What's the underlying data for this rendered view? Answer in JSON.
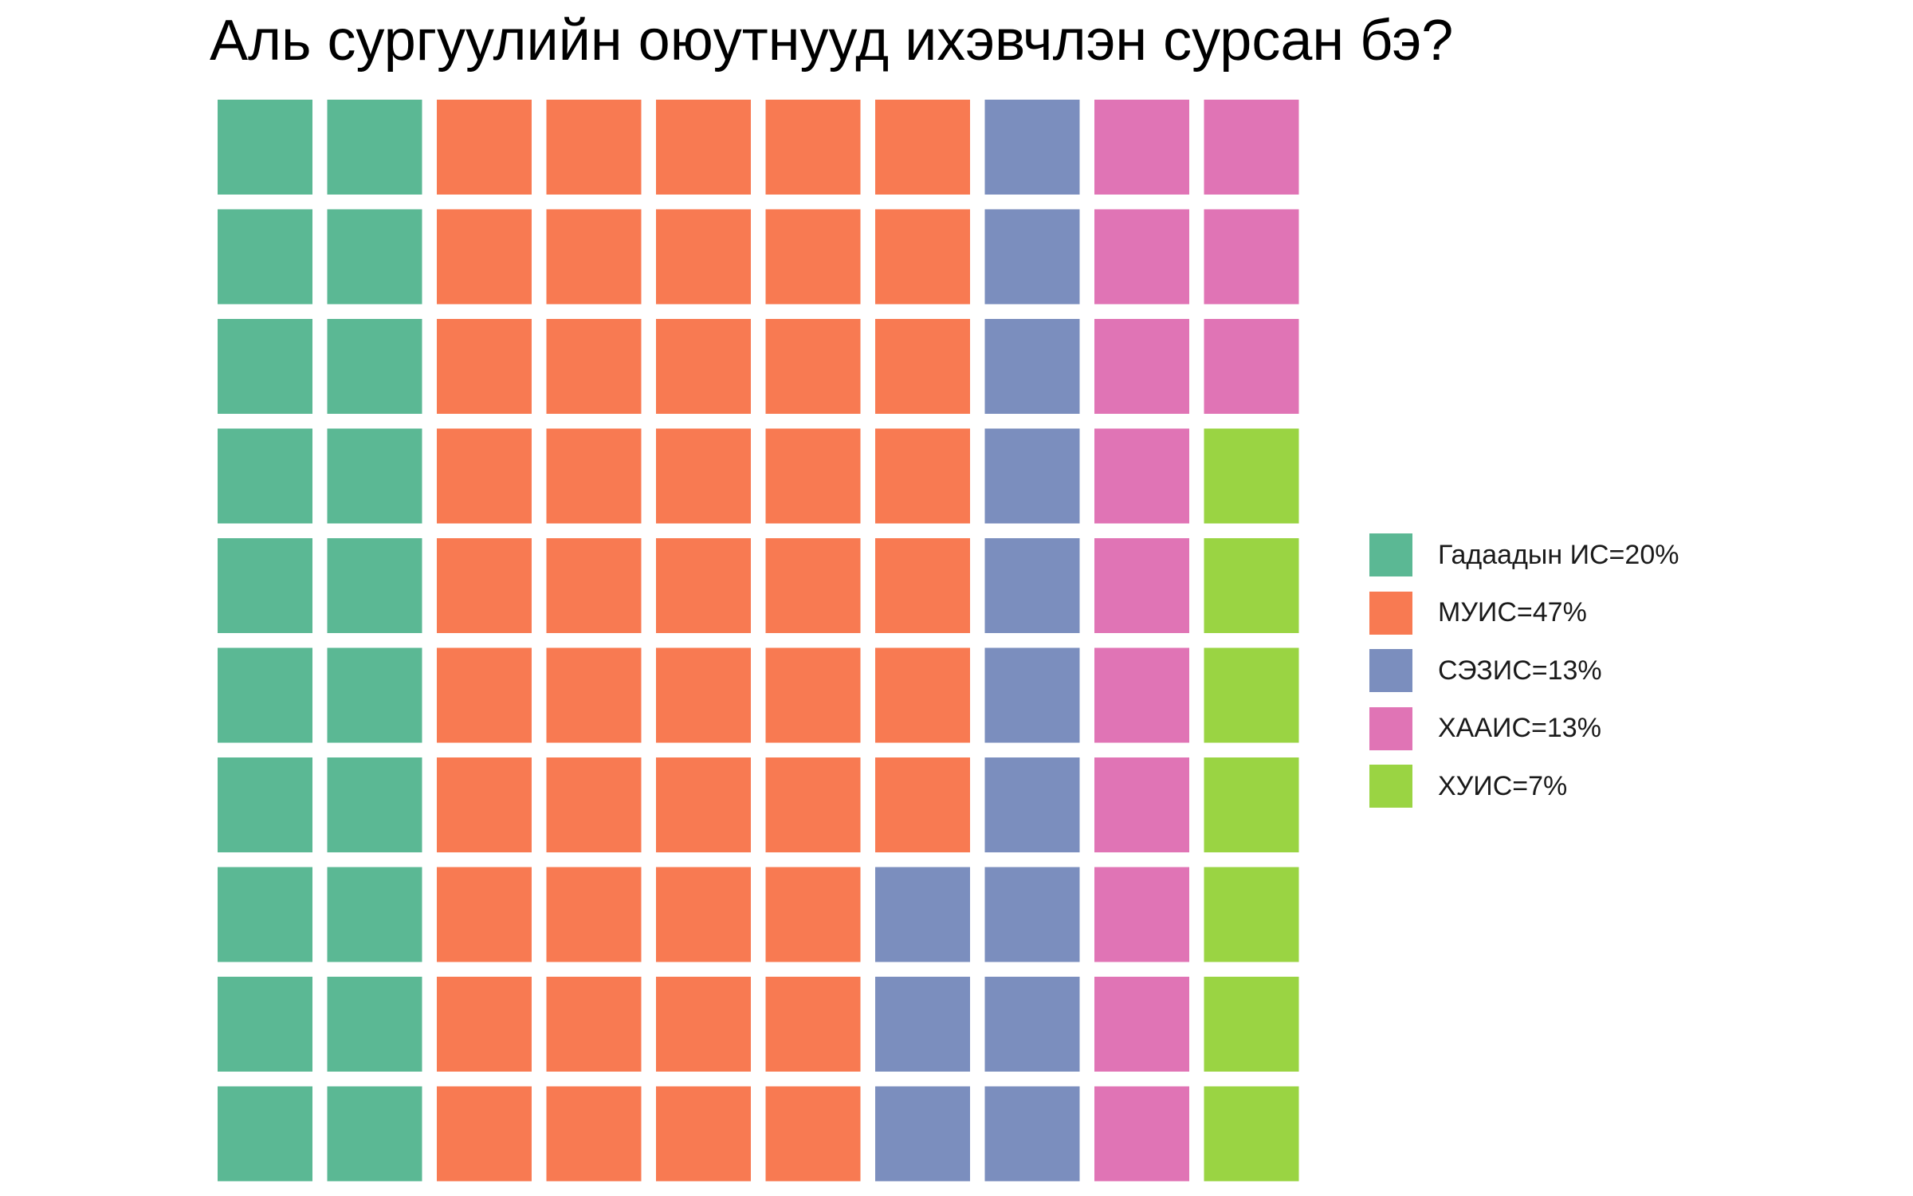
{
  "chart_data": {
    "type": "waffle",
    "title": "Аль сургуулийн оюутнууд ихэвчлэн сурсан бэ?",
    "grid": {
      "rows": 10,
      "cols": 10,
      "fill_order": "column-major"
    },
    "series": [
      {
        "name": "Гадаадын ИС=20%",
        "count": 20,
        "color": "#5BB894"
      },
      {
        "name": "МУИС=47%",
        "count": 47,
        "color": "#F87A52"
      },
      {
        "name": "СЭЗИС=13%",
        "count": 13,
        "color": "#7B8EBE"
      },
      {
        "name": "ХААИС=13%",
        "count": 13,
        "color": "#E074B5"
      },
      {
        "name": "ХУИС=7%",
        "count": 7,
        "color": "#9AD443"
      }
    ],
    "legend_position": "right"
  }
}
